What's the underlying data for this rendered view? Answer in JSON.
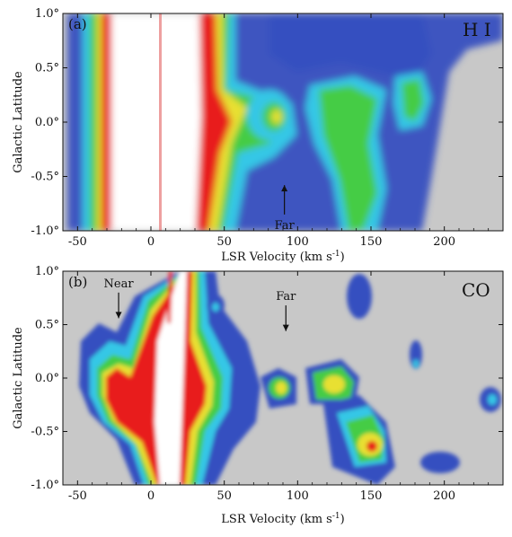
{
  "figure": {
    "colors": {
      "background": "#c8c8c8",
      "low": "#3550c0",
      "low_mid": "#36c7e6",
      "mid": "#45cc45",
      "mid_high": "#e8e030",
      "high": "#e81c1c",
      "saturated": "#ffffff"
    }
  },
  "chart_data": [
    {
      "type": "heatmap",
      "panel_label": "(a)",
      "species_label": "H I",
      "xlabel_main": "LSR Velocity (km s",
      "xlabel_sup": "-1",
      "xlabel_end": ")",
      "ylabel": "Galactic Latitude",
      "xlim": [
        -60,
        240
      ],
      "ylim": [
        -1.0,
        1.0
      ],
      "x_ticks": [
        -50,
        0,
        50,
        100,
        150,
        200
      ],
      "x_tick_labels": [
        "-50",
        "0",
        "50",
        "100",
        "150",
        "200"
      ],
      "y_ticks": [
        1.0,
        0.5,
        0.0,
        -0.5,
        -1.0
      ],
      "y_tick_labels": [
        "1.0°",
        "0.5°",
        "0.0°",
        "-0.5°",
        "-1.0°"
      ],
      "annotations": [
        {
          "text": "Far",
          "arrow_velocity": 91,
          "arrow_from_latitude": -0.85,
          "arrow_to_latitude": -0.58
        }
      ],
      "emission_features": [
        {
          "velocity": 80,
          "latitude": 0.05,
          "level": "mid_high"
        },
        {
          "velocity": 120,
          "latitude": 0.1,
          "level": "mid"
        },
        {
          "velocity": 145,
          "latitude": -0.3,
          "level": "mid"
        },
        {
          "velocity": 183,
          "latitude": 0.15,
          "level": "mid"
        }
      ]
    },
    {
      "type": "heatmap",
      "panel_label": "(b)",
      "species_label": "CO",
      "xlabel_main": "LSR Velocity (km s",
      "xlabel_sup": "-1",
      "xlabel_end": ")",
      "ylabel": "Galactic Latitude",
      "xlim": [
        -60,
        240
      ],
      "ylim": [
        -1.0,
        1.0
      ],
      "x_ticks": [
        -50,
        0,
        50,
        100,
        150,
        200
      ],
      "x_tick_labels": [
        "-50",
        "0",
        "50",
        "100",
        "150",
        "200"
      ],
      "y_ticks": [
        1.0,
        0.5,
        0.0,
        -0.5,
        -1.0
      ],
      "y_tick_labels": [
        "1.0°",
        "0.5°",
        "0.0°",
        "-0.5°",
        "-1.0°"
      ],
      "annotations": [
        {
          "text": "Near",
          "arrow_velocity": -22,
          "arrow_from_latitude": 0.8,
          "arrow_to_latitude": 0.56
        },
        {
          "text": "Far",
          "arrow_velocity": 92,
          "arrow_from_latitude": 0.68,
          "arrow_to_latitude": 0.44
        }
      ],
      "emission_features": [
        {
          "velocity": -25,
          "latitude": -0.15,
          "level": "high"
        },
        {
          "velocity": 90,
          "latitude": -0.05,
          "level": "mid_high"
        },
        {
          "velocity": 130,
          "latitude": -0.05,
          "level": "mid_high"
        },
        {
          "velocity": 150,
          "latitude": -0.7,
          "level": "mid_high"
        },
        {
          "velocity": 237,
          "latitude": -0.2,
          "level": "low_mid"
        }
      ]
    }
  ]
}
